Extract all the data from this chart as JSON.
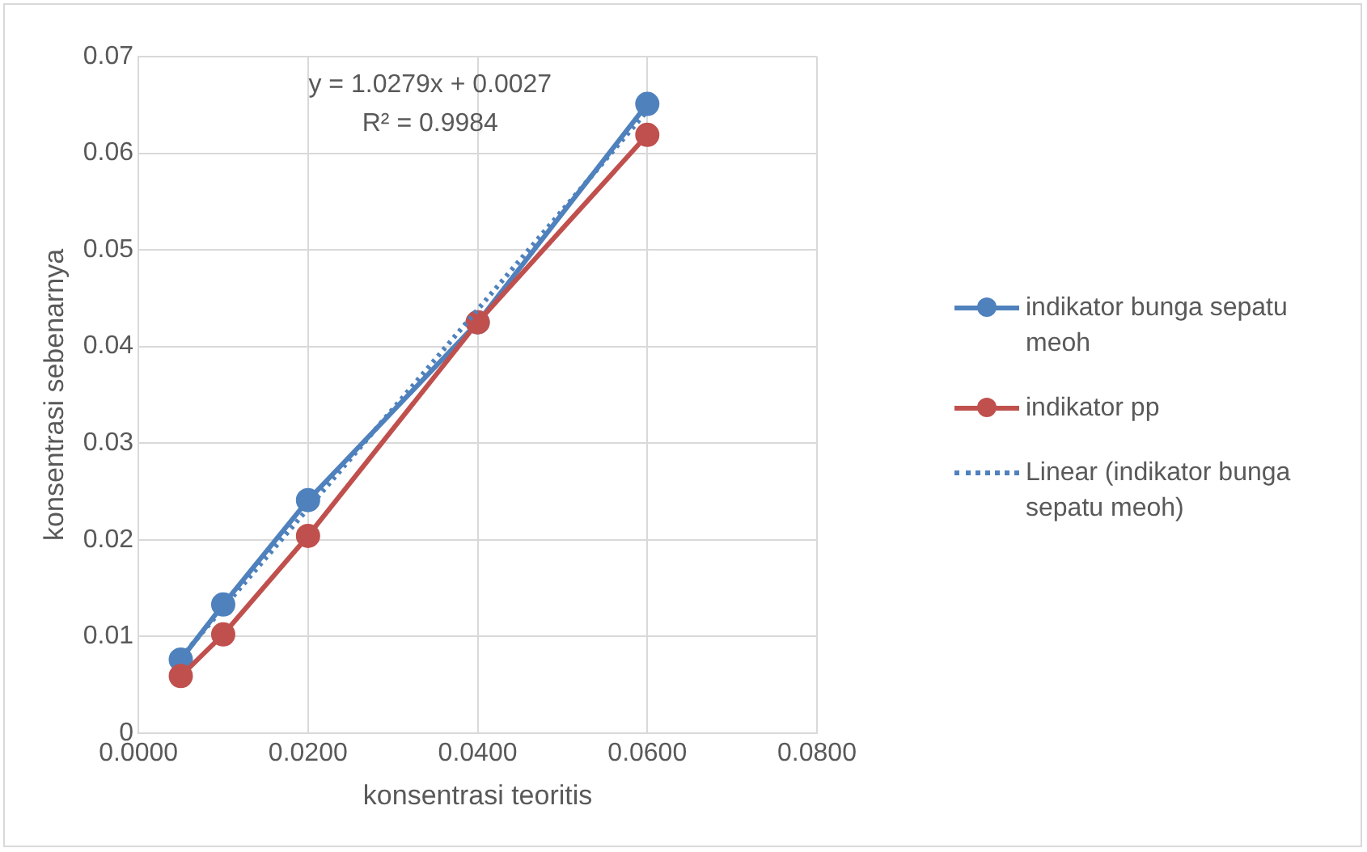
{
  "chart_data": {
    "type": "line",
    "xlabel": "konsentrasi teoritis",
    "ylabel": "konsentrasi sebenarnya",
    "x": [
      0.005,
      0.01,
      0.02,
      0.04,
      0.06
    ],
    "series": [
      {
        "name": "indikator bunga sepatu meoh",
        "color": "#4f81bd",
        "values": [
          0.0076,
          0.0133,
          0.0241,
          0.0425,
          0.0651
        ],
        "marker": "circle"
      },
      {
        "name": "indikator pp",
        "color": "#c0504d",
        "values": [
          0.0059,
          0.0102,
          0.0204,
          0.0425,
          0.0619
        ],
        "marker": "circle"
      },
      {
        "name": "Linear (indikator bunga sepatu meoh)",
        "color": "#4f81bd",
        "x": [
          0.005,
          0.06
        ],
        "values": [
          0.0078,
          0.0644
        ],
        "marker": "none",
        "line_style": "dotted"
      }
    ],
    "annotations": [
      "y = 1.0279x + 0.0027",
      "R² = 0.9984"
    ],
    "xlim": [
      0,
      0.08
    ],
    "xticks": [
      {
        "value": 0,
        "label": "0.0000"
      },
      {
        "value": 0.02,
        "label": "0.0200"
      },
      {
        "value": 0.04,
        "label": "0.0400"
      },
      {
        "value": 0.06,
        "label": "0.0600"
      },
      {
        "value": 0.08,
        "label": "0.0800"
      }
    ],
    "ylim": [
      0,
      0.07
    ],
    "yticks": [
      0,
      0.01,
      0.02,
      0.03,
      0.04,
      0.05,
      0.06,
      0.07
    ],
    "grid": true,
    "legend": "right"
  }
}
